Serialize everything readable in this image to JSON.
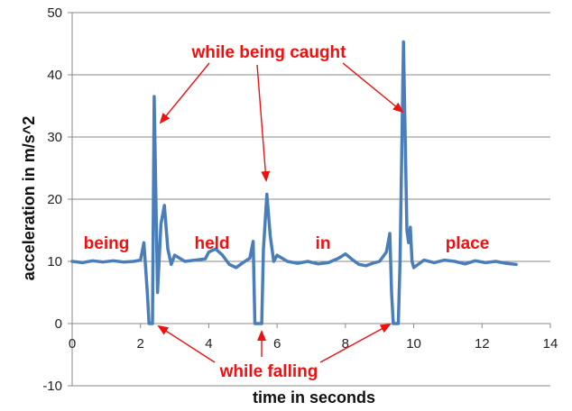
{
  "chart_data": {
    "type": "line",
    "xlabel": "time in seconds",
    "ylabel": "acceleration in m/s^2",
    "xlim": [
      0,
      14
    ],
    "ylim": [
      -10,
      50
    ],
    "x_ticks": [
      0,
      2,
      4,
      6,
      8,
      10,
      12,
      14
    ],
    "y_ticks": [
      -10,
      0,
      10,
      20,
      30,
      40,
      50
    ],
    "grid": "horizontal",
    "legend": "none",
    "series": [
      {
        "color": "#4a7ebb",
        "points": [
          [
            0.0,
            10.0
          ],
          [
            0.3,
            9.8
          ],
          [
            0.6,
            10.1
          ],
          [
            0.9,
            9.9
          ],
          [
            1.2,
            10.1
          ],
          [
            1.5,
            9.9
          ],
          [
            1.8,
            10.0
          ],
          [
            2.0,
            10.2
          ],
          [
            2.1,
            13.0
          ],
          [
            2.2,
            5.0
          ],
          [
            2.25,
            0.0
          ],
          [
            2.35,
            0.0
          ],
          [
            2.4,
            36.5
          ],
          [
            2.5,
            5.0
          ],
          [
            2.6,
            16.0
          ],
          [
            2.7,
            19.0
          ],
          [
            2.8,
            12.0
          ],
          [
            2.9,
            9.5
          ],
          [
            3.0,
            11.0
          ],
          [
            3.3,
            10.0
          ],
          [
            3.6,
            10.2
          ],
          [
            3.9,
            10.4
          ],
          [
            4.0,
            11.5
          ],
          [
            4.2,
            12.0
          ],
          [
            4.4,
            11.0
          ],
          [
            4.6,
            9.5
          ],
          [
            4.8,
            9.0
          ],
          [
            5.0,
            9.8
          ],
          [
            5.2,
            10.5
          ],
          [
            5.3,
            13.2
          ],
          [
            5.35,
            0.0
          ],
          [
            5.55,
            0.0
          ],
          [
            5.6,
            12.0
          ],
          [
            5.7,
            20.8
          ],
          [
            5.8,
            14.0
          ],
          [
            5.9,
            10.0
          ],
          [
            6.0,
            11.0
          ],
          [
            6.3,
            10.0
          ],
          [
            6.6,
            9.7
          ],
          [
            6.9,
            10.0
          ],
          [
            7.2,
            9.6
          ],
          [
            7.5,
            9.8
          ],
          [
            7.8,
            10.5
          ],
          [
            8.0,
            11.2
          ],
          [
            8.2,
            10.3
          ],
          [
            8.4,
            9.5
          ],
          [
            8.6,
            9.3
          ],
          [
            8.8,
            9.7
          ],
          [
            9.0,
            10.0
          ],
          [
            9.2,
            11.5
          ],
          [
            9.3,
            14.5
          ],
          [
            9.35,
            5.0
          ],
          [
            9.4,
            0.0
          ],
          [
            9.55,
            0.0
          ],
          [
            9.6,
            10.0
          ],
          [
            9.7,
            45.3
          ],
          [
            9.8,
            15.0
          ],
          [
            9.85,
            13.0
          ],
          [
            9.9,
            15.5
          ],
          [
            9.95,
            10.0
          ],
          [
            10.0,
            9.0
          ],
          [
            10.3,
            10.2
          ],
          [
            10.6,
            9.8
          ],
          [
            10.9,
            10.2
          ],
          [
            11.2,
            10.0
          ],
          [
            11.5,
            9.6
          ],
          [
            11.8,
            10.1
          ],
          [
            12.1,
            9.8
          ],
          [
            12.4,
            10.0
          ],
          [
            12.7,
            9.7
          ],
          [
            13.0,
            9.5
          ]
        ]
      }
    ],
    "annotations": {
      "caught": "while being caught",
      "falling": "while falling",
      "being": "being",
      "held": "held",
      "in": "in",
      "place": "place"
    },
    "annotation_color": "#ee1111"
  }
}
